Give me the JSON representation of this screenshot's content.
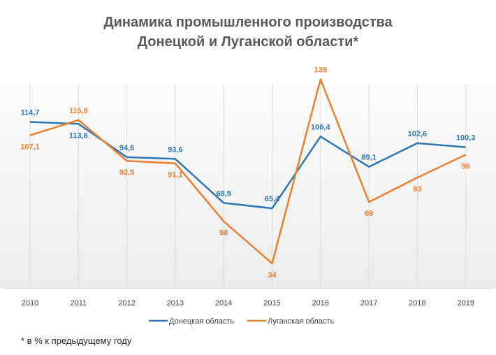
{
  "chart_data": {
    "type": "line",
    "title_lines": [
      "Динамика промышленного производства",
      "Донецкой и Луганской области*"
    ],
    "categories": [
      "2010",
      "2011",
      "2012",
      "2013",
      "2014",
      "2015",
      "2016",
      "2017",
      "2018",
      "2019"
    ],
    "series": [
      {
        "name": "Донецкая область",
        "color": "#2E75B6",
        "values": [
          114.7,
          113.6,
          94.6,
          93.6,
          68.5,
          65.4,
          106.4,
          89.1,
          102.6,
          100.3
        ],
        "labels": [
          "114,7",
          "113,6",
          "94,6",
          "93,6",
          "68,5",
          "65,4",
          "106,4",
          "89,1",
          "102,6",
          "100,3"
        ]
      },
      {
        "name": "Луганская область",
        "color": "#ED7D31",
        "values": [
          107.1,
          115.8,
          92.5,
          91.1,
          58,
          34,
          139,
          69,
          83,
          96
        ],
        "labels": [
          "107,1",
          "115,8",
          "92,5",
          "91,1",
          "58",
          "34",
          "139",
          "69",
          "83",
          "96"
        ]
      }
    ],
    "ylim": [
      20,
      150
    ],
    "grid": "vertical",
    "legend_position": "bottom"
  },
  "footnote": "* в % к предыдущему году"
}
